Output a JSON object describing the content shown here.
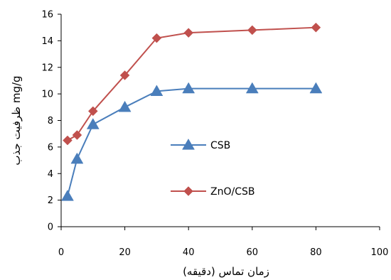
{
  "chart_data": {
    "type": "line",
    "title": "",
    "xlabel": "زمان تماس (دقیقه)",
    "ylabel": "mg/g ظرفیت جذب",
    "xlim": [
      0,
      100
    ],
    "ylim": [
      0,
      16
    ],
    "xticks": [
      0,
      20,
      40,
      60,
      80,
      100
    ],
    "yticks": [
      0,
      2,
      4,
      6,
      8,
      10,
      12,
      14,
      16
    ],
    "grid": false,
    "legend_position": "inside-center",
    "series": [
      {
        "name": "CSB",
        "color": "#4a7ebb",
        "marker": "triangle",
        "x": [
          2,
          5,
          10,
          20,
          30,
          40,
          60,
          80
        ],
        "y": [
          2.3,
          5.1,
          7.7,
          9.0,
          10.2,
          10.4,
          10.4,
          10.4
        ]
      },
      {
        "name": "ZnO/CSB",
        "color": "#c0504d",
        "marker": "diamond",
        "x": [
          2,
          5,
          10,
          20,
          30,
          40,
          60,
          80
        ],
        "y": [
          6.5,
          6.9,
          8.7,
          11.4,
          14.2,
          14.6,
          14.8,
          15.0
        ]
      }
    ]
  }
}
